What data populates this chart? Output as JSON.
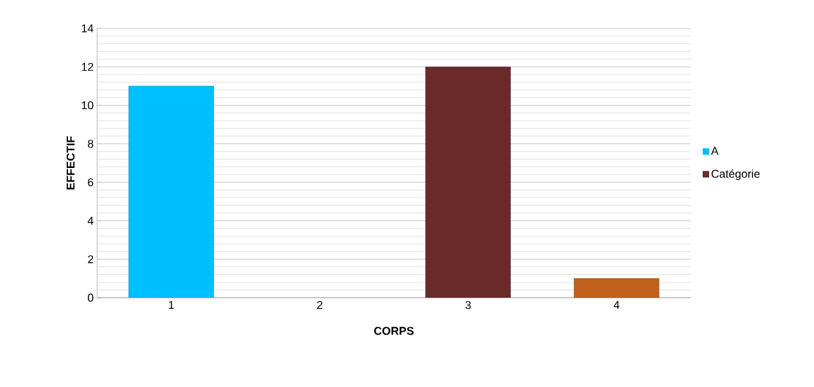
{
  "chart_data": {
    "type": "bar",
    "xlabel": "CORPS",
    "ylabel": "EFFECTIF",
    "categories": [
      "1",
      "2",
      "3",
      "4"
    ],
    "series": [
      {
        "name": "A",
        "color": "#00bfff",
        "values": [
          11,
          null,
          null,
          null
        ]
      },
      {
        "name": "Catégorie",
        "color": "#6b2a2a",
        "colors": [
          null,
          null,
          "#6b2a2a",
          "#c0601a"
        ],
        "values": [
          null,
          null,
          12,
          1
        ]
      }
    ],
    "ylim": [
      0,
      14
    ],
    "yticks": [
      0,
      2,
      4,
      6,
      8,
      10,
      12,
      14
    ],
    "grid": "y",
    "legend": "right"
  }
}
